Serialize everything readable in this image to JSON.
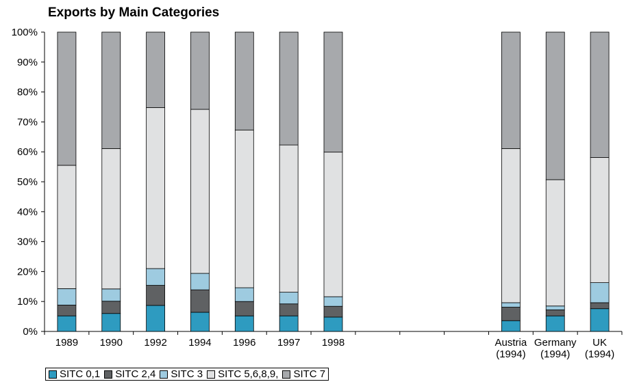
{
  "chart_data": {
    "type": "bar",
    "stacked": true,
    "title": "Exports by Main Categories",
    "categories": [
      "1989",
      "1990",
      "1992",
      "1994",
      "1996",
      "1997",
      "1998",
      "",
      "",
      "",
      "Austria\n(1994)",
      "Germany\n(1994)",
      "UK\n(1994)"
    ],
    "series": [
      {
        "name": "SITC 0,1",
        "color": "#2e9bc0",
        "values": [
          5.2,
          6.0,
          8.7,
          6.4,
          5.2,
          5.2,
          4.8,
          null,
          null,
          null,
          3.6,
          5.2,
          7.6
        ]
      },
      {
        "name": "SITC 2,4",
        "color": "#5f6163",
        "values": [
          3.6,
          4.1,
          6.7,
          7.5,
          4.8,
          4.0,
          3.6,
          null,
          null,
          null,
          4.5,
          2.0,
          2.0
        ]
      },
      {
        "name": "SITC 3",
        "color": "#9ecbe0",
        "values": [
          5.5,
          4.1,
          5.6,
          5.5,
          4.6,
          3.9,
          3.2,
          null,
          null,
          null,
          1.5,
          1.3,
          6.7
        ]
      },
      {
        "name": "SITC 5,6,8,9,",
        "color": "#e0e1e2",
        "values": [
          41.2,
          46.9,
          53.8,
          54.8,
          52.7,
          49.2,
          48.3,
          null,
          null,
          null,
          51.5,
          42.2,
          41.8
        ]
      },
      {
        "name": "SITC 7",
        "color": "#a7a9ac",
        "values": [
          44.5,
          38.9,
          25.2,
          25.8,
          32.7,
          37.7,
          40.1,
          null,
          null,
          null,
          38.9,
          49.3,
          41.9
        ]
      }
    ],
    "ylim": [
      0,
      100
    ],
    "yticks": [
      "0%",
      "10%",
      "20%",
      "30%",
      "40%",
      "50%",
      "60%",
      "70%",
      "80%",
      "90%",
      "100%"
    ],
    "grid": false,
    "legend_position": "bottom-left"
  }
}
